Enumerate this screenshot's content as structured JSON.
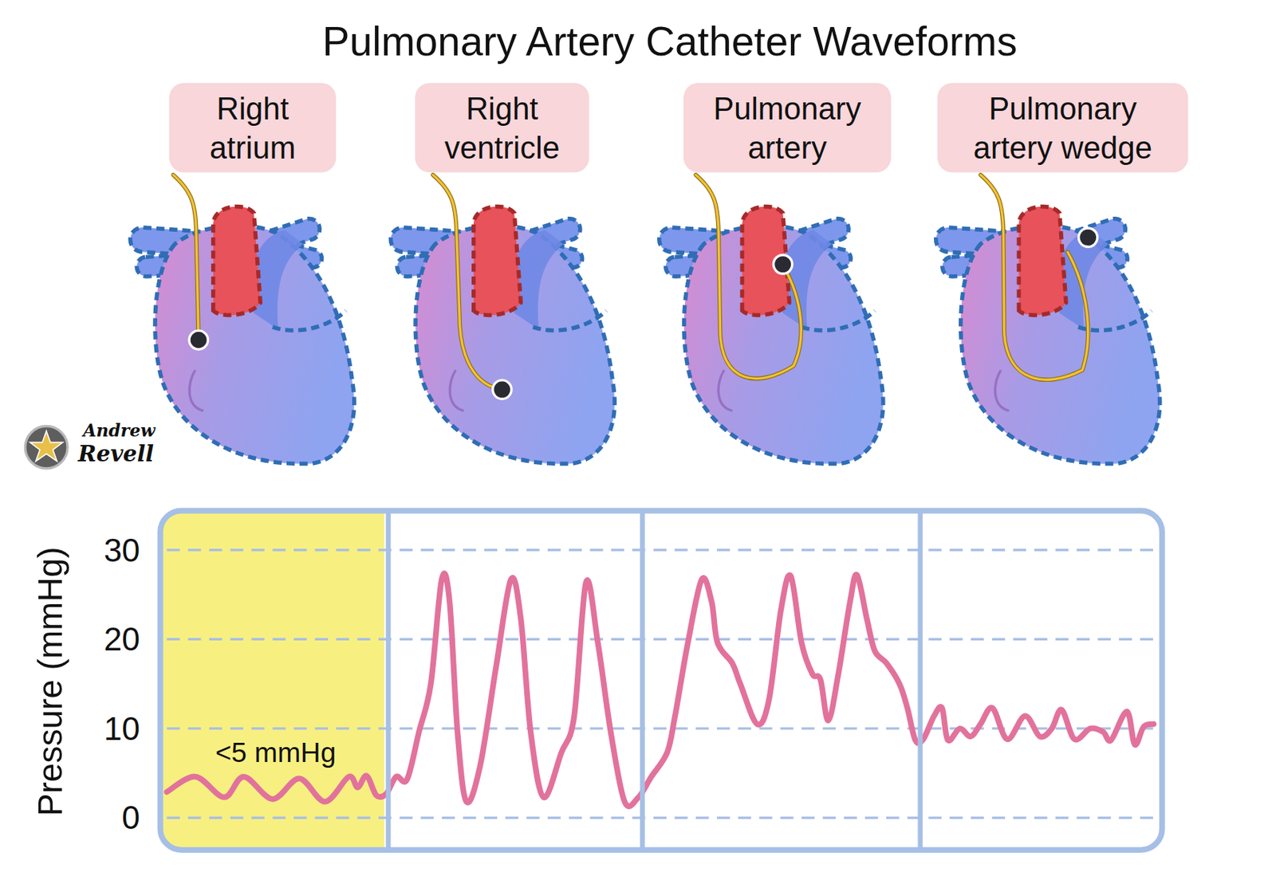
{
  "title": "Pulmonary Artery Catheter Waveforms",
  "panels": [
    {
      "label": [
        "Right",
        "atrium"
      ]
    },
    {
      "label": [
        "Right",
        "ventricle"
      ]
    },
    {
      "label": [
        "Pulmonary",
        "artery"
      ]
    },
    {
      "label": [
        "Pulmonary",
        "artery wedge"
      ]
    }
  ],
  "logo": [
    "Andrew",
    "Revell"
  ],
  "chart_data": {
    "type": "line",
    "y_label": "Pressure (mmHg)",
    "x": [
      0,
      2.9,
      5.8,
      7.8,
      10.7,
      13.4,
      16.0,
      18.4,
      19.3,
      20.2,
      21.2,
      22.2,
      23.2,
      24.3,
      25.5,
      26.7,
      27.8,
      28.6,
      29.4,
      30.3,
      31.7,
      33.3,
      34.8,
      35.8,
      36.8,
      38.1,
      39.9,
      41.2,
      42.4,
      43.6,
      44.9,
      46.3,
      47.7,
      49.0,
      50.6,
      51.4,
      52.7,
      54.1,
      55.1,
      55.7,
      57.2,
      58.0,
      59.7,
      60.9,
      62.1,
      63.1,
      64.2,
      65.3,
      66.1,
      66.9,
      67.9,
      69.1,
      69.8,
      70.8,
      71.6,
      72.8,
      74.1,
      74.9,
      75.7,
      76.5,
      77.6,
      78.4,
      79.0,
      80.2,
      81.3,
      82.3,
      83.5,
      85.0,
      86.8,
      88.3,
      89.5,
      90.5,
      91.8,
      93.4,
      94.7,
      95.5,
      97.1,
      97.9,
      98.8,
      99.8
    ],
    "values": [
      2.9,
      4.6,
      2.3,
      4.6,
      2.1,
      4.4,
      1.8,
      4.6,
      3.4,
      4.7,
      2.5,
      2.7,
      4.6,
      4.3,
      9.6,
      15,
      26.7,
      24.2,
      9.6,
      1.8,
      5.9,
      16.9,
      26.7,
      22.3,
      9.6,
      2.3,
      7.3,
      11.4,
      26.4,
      19.6,
      9.6,
      1.8,
      2.3,
      4.6,
      7.3,
      11.4,
      19.6,
      26.7,
      24.2,
      19.6,
      17.3,
      15,
      10.5,
      13.2,
      23.2,
      27.1,
      19.6,
      16.1,
      15.5,
      10.9,
      16,
      24.2,
      27.2,
      22.3,
      18.7,
      17.3,
      15,
      12.3,
      8.7,
      8.8,
      11.4,
      12.3,
      8.7,
      10,
      9.1,
      10.5,
      12.3,
      8.8,
      11.4,
      9.1,
      10,
      12.1,
      8.8,
      10,
      9.6,
      8.7,
      11.9,
      8.2,
      10.2,
      10.5
    ],
    "color": "#e2729c",
    "xlim": [
      0,
      100
    ],
    "ylim": [
      -3.6,
      34.4
    ],
    "yticks": [
      0,
      10,
      20,
      30
    ],
    "grid": true,
    "tick_labels": "y",
    "dividers": [
      22.4,
      48.1,
      76.2
    ],
    "highlight": {
      "range": [
        0,
        22
      ],
      "color": "#f7f081"
    },
    "annotations": [
      {
        "text": "<5 mmHg"
      }
    ]
  }
}
